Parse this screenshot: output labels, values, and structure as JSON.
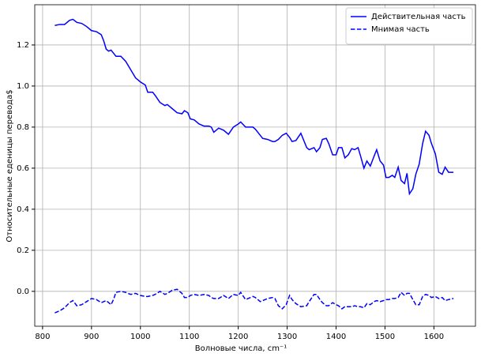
{
  "chart_data": {
    "type": "line",
    "xlabel": "Волновые числа, cm⁻¹",
    "ylabel": "Относительные еденицы перевода$",
    "x": [
      825,
      835,
      845,
      855,
      862,
      870,
      880,
      890,
      900,
      910,
      920,
      925,
      930,
      935,
      940,
      945,
      950,
      960,
      970,
      980,
      990,
      1000,
      1010,
      1015,
      1025,
      1030,
      1040,
      1050,
      1055,
      1065,
      1075,
      1085,
      1090,
      1097,
      1102,
      1110,
      1120,
      1130,
      1140,
      1145,
      1150,
      1160,
      1170,
      1180,
      1190,
      1200,
      1205,
      1215,
      1230,
      1235,
      1245,
      1250,
      1260,
      1270,
      1275,
      1282,
      1290,
      1298,
      1305,
      1310,
      1318,
      1328,
      1340,
      1345,
      1355,
      1360,
      1367,
      1372,
      1380,
      1385,
      1393,
      1400,
      1405,
      1412,
      1418,
      1425,
      1432,
      1438,
      1445,
      1450,
      1457,
      1463,
      1470,
      1478,
      1483,
      1490,
      1497,
      1502,
      1508,
      1515,
      1520,
      1527,
      1533,
      1540,
      1545,
      1550,
      1557,
      1563,
      1570,
      1577,
      1583,
      1590,
      1595,
      1603,
      1610,
      1617,
      1623,
      1630,
      1640
    ],
    "series": [
      {
        "name": "Действительная часть",
        "color": "#0000ff",
        "dash": false,
        "values": [
          1.295,
          1.3,
          1.3,
          1.32,
          1.325,
          1.31,
          1.305,
          1.29,
          1.27,
          1.265,
          1.25,
          1.22,
          1.18,
          1.17,
          1.175,
          1.16,
          1.145,
          1.145,
          1.12,
          1.08,
          1.04,
          1.02,
          1.005,
          0.97,
          0.97,
          0.955,
          0.92,
          0.905,
          0.91,
          0.89,
          0.87,
          0.865,
          0.88,
          0.87,
          0.84,
          0.835,
          0.815,
          0.805,
          0.805,
          0.8,
          0.775,
          0.795,
          0.785,
          0.765,
          0.8,
          0.815,
          0.825,
          0.8,
          0.8,
          0.79,
          0.76,
          0.745,
          0.74,
          0.73,
          0.73,
          0.74,
          0.76,
          0.77,
          0.75,
          0.73,
          0.735,
          0.77,
          0.7,
          0.69,
          0.7,
          0.68,
          0.7,
          0.74,
          0.745,
          0.72,
          0.665,
          0.665,
          0.7,
          0.7,
          0.65,
          0.665,
          0.695,
          0.69,
          0.7,
          0.66,
          0.6,
          0.635,
          0.61,
          0.66,
          0.69,
          0.635,
          0.615,
          0.555,
          0.555,
          0.565,
          0.555,
          0.605,
          0.54,
          0.525,
          0.575,
          0.475,
          0.5,
          0.57,
          0.62,
          0.72,
          0.78,
          0.76,
          0.72,
          0.67,
          0.58,
          0.57,
          0.605,
          0.58,
          0.58
        ]
      },
      {
        "name": "Мнимая часть",
        "color": "#0000ff",
        "dash": true,
        "values": [
          -0.105,
          -0.095,
          -0.08,
          -0.055,
          -0.045,
          -0.07,
          -0.065,
          -0.05,
          -0.035,
          -0.04,
          -0.055,
          -0.05,
          -0.045,
          -0.055,
          -0.065,
          -0.04,
          -0.005,
          0.0,
          -0.005,
          -0.015,
          -0.01,
          -0.02,
          -0.025,
          -0.025,
          -0.02,
          -0.015,
          0.0,
          -0.015,
          -0.01,
          0.005,
          0.01,
          -0.01,
          -0.03,
          -0.03,
          -0.02,
          -0.015,
          -0.02,
          -0.015,
          -0.02,
          -0.03,
          -0.035,
          -0.035,
          -0.02,
          -0.035,
          -0.015,
          -0.02,
          -0.005,
          -0.04,
          -0.025,
          -0.03,
          -0.05,
          -0.045,
          -0.035,
          -0.03,
          -0.035,
          -0.07,
          -0.085,
          -0.065,
          -0.02,
          -0.04,
          -0.06,
          -0.075,
          -0.07,
          -0.05,
          -0.015,
          -0.015,
          -0.04,
          -0.055,
          -0.07,
          -0.07,
          -0.055,
          -0.065,
          -0.07,
          -0.085,
          -0.075,
          -0.075,
          -0.075,
          -0.07,
          -0.075,
          -0.075,
          -0.08,
          -0.06,
          -0.065,
          -0.05,
          -0.045,
          -0.05,
          -0.045,
          -0.04,
          -0.04,
          -0.035,
          -0.035,
          -0.03,
          -0.005,
          -0.02,
          -0.01,
          -0.01,
          -0.04,
          -0.065,
          -0.065,
          -0.025,
          -0.015,
          -0.02,
          -0.03,
          -0.025,
          -0.035,
          -0.03,
          -0.045,
          -0.04,
          -0.035
        ]
      }
    ],
    "xlim": [
      784,
      1685
    ],
    "ylim": [
      -0.17,
      1.396
    ],
    "xticks": [
      800,
      900,
      1000,
      1100,
      1200,
      1300,
      1400,
      1500,
      1600
    ],
    "yticks": [
      {
        "value": 0,
        "label": "0.0"
      },
      0.2,
      0.4,
      0.6,
      0.8,
      {
        "value": 1,
        "label": "1.0"
      },
      1.2
    ],
    "grid": true,
    "legend": "upper right"
  }
}
